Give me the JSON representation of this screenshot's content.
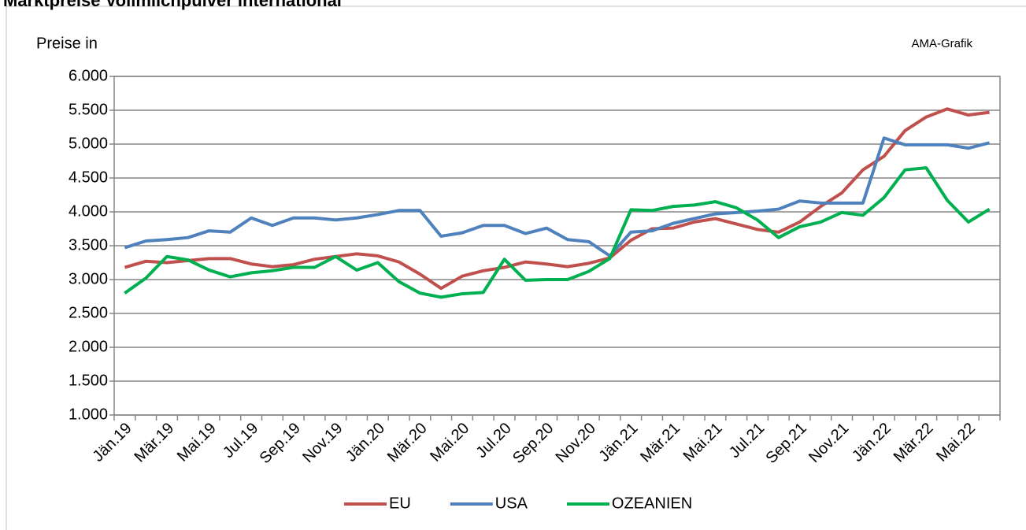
{
  "chart_data": {
    "type": "line",
    "title": "Marktpreise Vollmilchpulver international",
    "y_label": "Preise in",
    "source": "AMA-Grafik",
    "categories": [
      "Jän.19",
      null,
      "Mär.19",
      null,
      "Mai.19",
      null,
      "Jul.19",
      null,
      "Sep.19",
      null,
      "Nov.19",
      null,
      "Jän.20",
      null,
      "Mär.20",
      null,
      "Mai.20",
      null,
      "Jul.20",
      null,
      "Sep.20",
      null,
      "Nov.20",
      null,
      "Jän.21",
      null,
      "Mär.21",
      null,
      "Mai.21",
      null,
      "Jul.21",
      null,
      "Sep.21",
      null,
      "Nov.21",
      null,
      "Jän.22",
      null,
      "Mär.22",
      null,
      "Mai.22",
      null
    ],
    "series": [
      {
        "name": "EU",
        "color": "#c0504d",
        "values": [
          3180,
          3270,
          3250,
          3280,
          3310,
          3310,
          3230,
          3190,
          3220,
          3300,
          3340,
          3380,
          3350,
          3260,
          3080,
          2870,
          3050,
          3130,
          3180,
          3260,
          3230,
          3190,
          3240,
          3320,
          3580,
          3750,
          3760,
          3850,
          3900,
          3820,
          3740,
          3700,
          3850,
          4080,
          4280,
          4620,
          4820,
          5200,
          5400,
          5520,
          5430,
          5470
        ]
      },
      {
        "name": "USA",
        "color": "#4f81bd",
        "values": [
          3470,
          3570,
          3590,
          3620,
          3720,
          3700,
          3910,
          3800,
          3910,
          3910,
          3880,
          3910,
          3960,
          4020,
          4020,
          3640,
          3690,
          3800,
          3800,
          3680,
          3760,
          3590,
          3560,
          3350,
          3700,
          3720,
          3830,
          3900,
          3970,
          3990,
          4010,
          4040,
          4160,
          4130,
          4130,
          4130,
          5090,
          4990,
          4990,
          4990,
          4940,
          5020
        ]
      },
      {
        "name": "OZEANIEN",
        "color": "#00b050",
        "values": [
          2800,
          3020,
          3340,
          3290,
          3140,
          3040,
          3100,
          3130,
          3180,
          3180,
          3340,
          3140,
          3250,
          2970,
          2800,
          2740,
          2790,
          2810,
          3300,
          2990,
          3000,
          3000,
          3120,
          3310,
          4030,
          4020,
          4080,
          4100,
          4150,
          4060,
          3880,
          3620,
          3780,
          3850,
          3990,
          3950,
          4210,
          4620,
          4650,
          4170,
          3850,
          4040
        ]
      }
    ],
    "ylim": [
      1000,
      6000
    ],
    "yticks": [
      {
        "value": 1000,
        "label": "1.000"
      },
      {
        "value": 1500,
        "label": "1.500"
      },
      {
        "value": 2000,
        "label": "2.000"
      },
      {
        "value": 2500,
        "label": "2.500"
      },
      {
        "value": 3000,
        "label": "3.000"
      },
      {
        "value": 3500,
        "label": "3.500"
      },
      {
        "value": 4000,
        "label": "4.000"
      },
      {
        "value": 4500,
        "label": "4.500"
      },
      {
        "value": 5000,
        "label": "5.000"
      },
      {
        "value": 5500,
        "label": "5.500"
      },
      {
        "value": 6000,
        "label": "6.000"
      }
    ],
    "grid": true,
    "legend": "bottom"
  }
}
